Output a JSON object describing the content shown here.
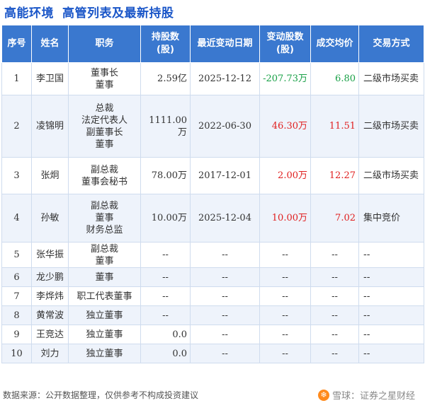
{
  "header": {
    "company": "高能环境",
    "subtitle": "高管列表及最新持股"
  },
  "table": {
    "columns": [
      "序号",
      "姓名",
      "职务",
      "持股数\n(股)",
      "最近变动日期",
      "变动股数\n(股)",
      "成交均价",
      "交易方式"
    ],
    "rows": [
      {
        "no": "1",
        "name": "李卫国",
        "titles": [
          "董事长",
          "董事"
        ],
        "shares": "2.59亿",
        "date": "2025-12-12",
        "change": "-207.73万",
        "change_dir": "neg",
        "price": "6.80",
        "price_dir": "neg",
        "method": "二级市场买卖"
      },
      {
        "no": "2",
        "name": "凌锦明",
        "titles": [
          "总裁",
          "法定代表人",
          "副董事长",
          "董事"
        ],
        "shares": "1111.00万",
        "date": "2022-06-30",
        "change": "46.30万",
        "change_dir": "pos",
        "price": "11.51",
        "price_dir": "pos",
        "method": "二级市场买卖"
      },
      {
        "no": "3",
        "name": "张炯",
        "titles": [
          "副总裁",
          "董事会秘书"
        ],
        "shares": "78.00万",
        "date": "2017-12-01",
        "change": "2.00万",
        "change_dir": "pos",
        "price": "12.27",
        "price_dir": "pos",
        "method": "二级市场买卖"
      },
      {
        "no": "4",
        "name": "孙敏",
        "titles": [
          "副总裁",
          "董事",
          "财务总监"
        ],
        "shares": "10.00万",
        "date": "2025-12-04",
        "change": "10.00万",
        "change_dir": "pos",
        "price": "7.02",
        "price_dir": "pos",
        "method": "集中竞价"
      },
      {
        "no": "5",
        "name": "张华振",
        "titles": [
          "副总裁",
          "董事"
        ],
        "shares": "--",
        "date": "--",
        "change": "--",
        "change_dir": "",
        "price": "--",
        "price_dir": "",
        "method": "--"
      },
      {
        "no": "6",
        "name": "龙少鹏",
        "titles": [
          "董事"
        ],
        "shares": "--",
        "date": "--",
        "change": "--",
        "change_dir": "",
        "price": "--",
        "price_dir": "",
        "method": "--"
      },
      {
        "no": "7",
        "name": "李烨炜",
        "titles": [
          "职工代表董事"
        ],
        "shares": "--",
        "date": "--",
        "change": "--",
        "change_dir": "",
        "price": "--",
        "price_dir": "",
        "method": "--"
      },
      {
        "no": "8",
        "name": "黄常波",
        "titles": [
          "独立董事"
        ],
        "shares": "--",
        "date": "--",
        "change": "--",
        "change_dir": "",
        "price": "--",
        "price_dir": "",
        "method": "--"
      },
      {
        "no": "9",
        "name": "王竞达",
        "titles": [
          "独立董事"
        ],
        "shares": "0.0",
        "date": "--",
        "change": "--",
        "change_dir": "",
        "price": "--",
        "price_dir": "",
        "method": "--"
      },
      {
        "no": "10",
        "name": "刘力",
        "titles": [
          "独立董事"
        ],
        "shares": "0.0",
        "date": "--",
        "change": "--",
        "change_dir": "",
        "price": "--",
        "price_dir": "",
        "method": "--"
      }
    ]
  },
  "footer": {
    "source": "数据来源：公开数据整理，仅供参考不构成投资建议"
  },
  "brand": {
    "icon": "snowball-icon",
    "text": "雪球：证券之星财经"
  },
  "colors": {
    "header_bg": "#3a78cf",
    "title": "#1a56c8",
    "positive": "#e02020",
    "negative": "#18a046",
    "row_shade": "#eef3fb"
  }
}
